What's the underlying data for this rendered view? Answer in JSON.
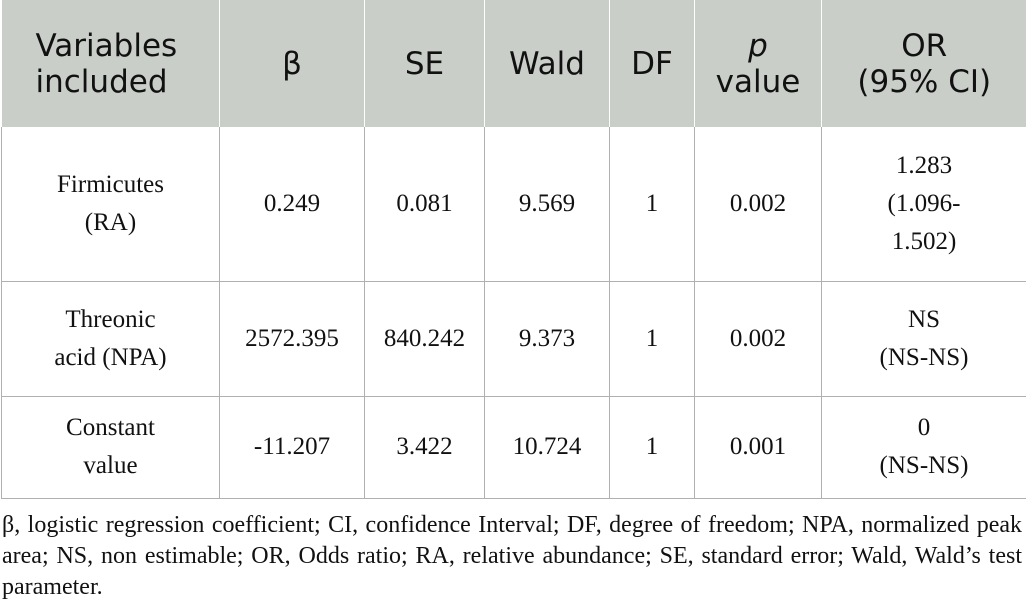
{
  "table": {
    "headers": [
      {
        "lines": [
          "Variables",
          "included"
        ]
      },
      {
        "lines": [
          "β"
        ]
      },
      {
        "lines": [
          "SE"
        ]
      },
      {
        "lines": [
          "Wald"
        ]
      },
      {
        "lines": [
          "DF"
        ]
      },
      {
        "lines": [
          "p",
          "value"
        ]
      },
      {
        "lines": [
          "OR",
          "(95% CI)"
        ]
      }
    ],
    "rows": [
      {
        "variable": [
          "Firmicutes",
          "(RA)"
        ],
        "beta": "0.249",
        "se": "0.081",
        "wald": "9.569",
        "df": "1",
        "p_value": "0.002",
        "or_ci": [
          "1.283",
          "(1.096-",
          "1.502)"
        ]
      },
      {
        "variable": [
          "Threonic",
          "acid (NPA)"
        ],
        "beta": "2572.395",
        "se": "840.242",
        "wald": "9.373",
        "df": "1",
        "p_value": "0.002",
        "or_ci": [
          "NS",
          "(NS-NS)"
        ]
      },
      {
        "variable": [
          "Constant",
          "value"
        ],
        "beta": "-11.207",
        "se": "3.422",
        "wald": "10.724",
        "df": "1",
        "p_value": "0.001",
        "or_ci": [
          "0",
          "(NS-NS)"
        ]
      }
    ]
  },
  "footnote": "β, logistic regression coefficient; CI, confidence Interval; DF, degree of freedom; NPA, normalized peak area; NS, non estimable; OR, Odds ratio; RA, relative abundance; SE, standard error; Wald, Wald’s test parameter."
}
